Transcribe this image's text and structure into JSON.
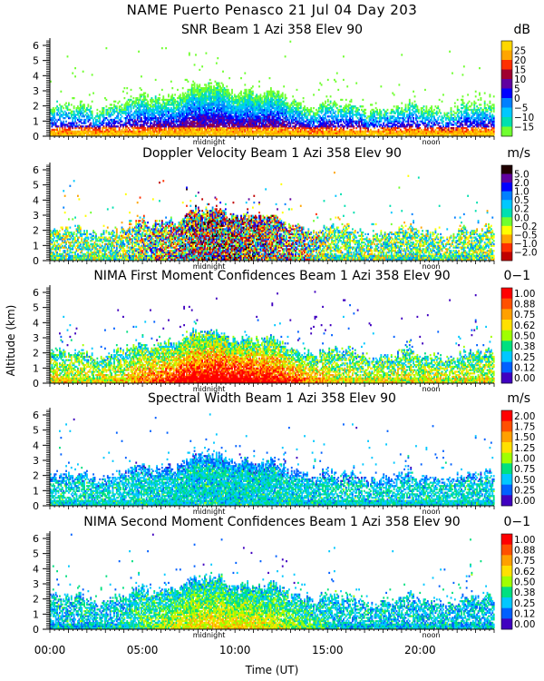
{
  "page": {
    "title": "NAME Puerto Penasco  21 Jul 04 Day 203",
    "ylabel": "Altitude (km)",
    "xlabel": "Time (UT)",
    "x_ticks": [
      "00:00",
      "05:00",
      "10:00",
      "15:00",
      "20:00"
    ],
    "time_markers": [
      "midnight",
      "noon"
    ]
  },
  "chart_data": [
    {
      "type": "heatmap",
      "title": "SNR Beam 1 Azi 358 Elev 90",
      "unit": "dB",
      "ylim": [
        0,
        6.3
      ],
      "y_ticks": [
        "0",
        "1",
        "2",
        "3",
        "4",
        "5",
        "6"
      ],
      "xlim": [
        0,
        24
      ],
      "colorbar": {
        "labels": [
          "25",
          "20",
          "15",
          "10",
          "5",
          "0",
          "−5",
          "−10",
          "−15"
        ],
        "colors": [
          "#ffd700",
          "#ffa500",
          "#ff3000",
          "#a00030",
          "#6000a0",
          "#0000ff",
          "#0080ff",
          "#00c8ff",
          "#00e0b0",
          "#70ff30"
        ]
      }
    },
    {
      "type": "heatmap",
      "title": "Doppler Velocity Beam 1 Azi 358 Elev 90",
      "unit": "m/s",
      "ylim": [
        0,
        6.3
      ],
      "y_ticks": [
        "0",
        "1",
        "2",
        "3",
        "4",
        "5",
        "6"
      ],
      "xlim": [
        0,
        24
      ],
      "colorbar": {
        "labels": [
          "5.0",
          "2.0",
          "1.0",
          "0.5",
          "0.2",
          "0.0",
          "−0.2",
          "−0.5",
          "−1.0",
          "−2.0"
        ],
        "colors": [
          "#200000",
          "#6000a0",
          "#0000ff",
          "#0080ff",
          "#00c8ff",
          "#00e0b0",
          "#70ff30",
          "#ffff00",
          "#ffa500",
          "#ff3000",
          "#c00000"
        ]
      }
    },
    {
      "type": "heatmap",
      "title": "NIMA First Moment Confidences Beam 1 Azi 358 Elev 90",
      "unit": "0−1",
      "ylim": [
        0,
        6.3
      ],
      "y_ticks": [
        "0",
        "1",
        "2",
        "3",
        "4",
        "5",
        "6"
      ],
      "xlim": [
        0,
        24
      ],
      "colorbar": {
        "labels": [
          "1.00",
          "0.88",
          "0.75",
          "0.62",
          "0.50",
          "0.38",
          "0.25",
          "0.12",
          "0.00"
        ],
        "colors": [
          "#ff0000",
          "#ff5000",
          "#ffa000",
          "#ffe000",
          "#a0ff00",
          "#00e080",
          "#00c8ff",
          "#0060ff",
          "#4000c0"
        ]
      }
    },
    {
      "type": "heatmap",
      "title": "Spectral Width Beam 1 Azi 358 Elev 90",
      "unit": "m/s",
      "ylim": [
        0,
        6.3
      ],
      "y_ticks": [
        "0",
        "1",
        "2",
        "3",
        "4",
        "5",
        "6"
      ],
      "xlim": [
        0,
        24
      ],
      "colorbar": {
        "labels": [
          "2.00",
          "1.75",
          "1.50",
          "1.25",
          "1.00",
          "0.75",
          "0.50",
          "0.25",
          "0.00"
        ],
        "colors": [
          "#ff0000",
          "#ff5000",
          "#ffa000",
          "#ffe000",
          "#a0ff00",
          "#00e080",
          "#00c8ff",
          "#0060ff",
          "#4000c0"
        ]
      }
    },
    {
      "type": "heatmap",
      "title": "NIMA Second Moment Confidences Beam 1 Azi 358 Elev 90",
      "unit": "0−1",
      "ylim": [
        0,
        6.3
      ],
      "y_ticks": [
        "0",
        "1",
        "2",
        "3",
        "4",
        "5",
        "6"
      ],
      "xlim": [
        0,
        24
      ],
      "colorbar": {
        "labels": [
          "1.00",
          "0.88",
          "0.75",
          "0.62",
          "0.50",
          "0.38",
          "0.25",
          "0.12",
          "0.00"
        ],
        "colors": [
          "#ff0000",
          "#ff5000",
          "#ffa000",
          "#ffe000",
          "#a0ff00",
          "#00e080",
          "#00c8ff",
          "#0060ff",
          "#4000c0"
        ]
      }
    }
  ]
}
